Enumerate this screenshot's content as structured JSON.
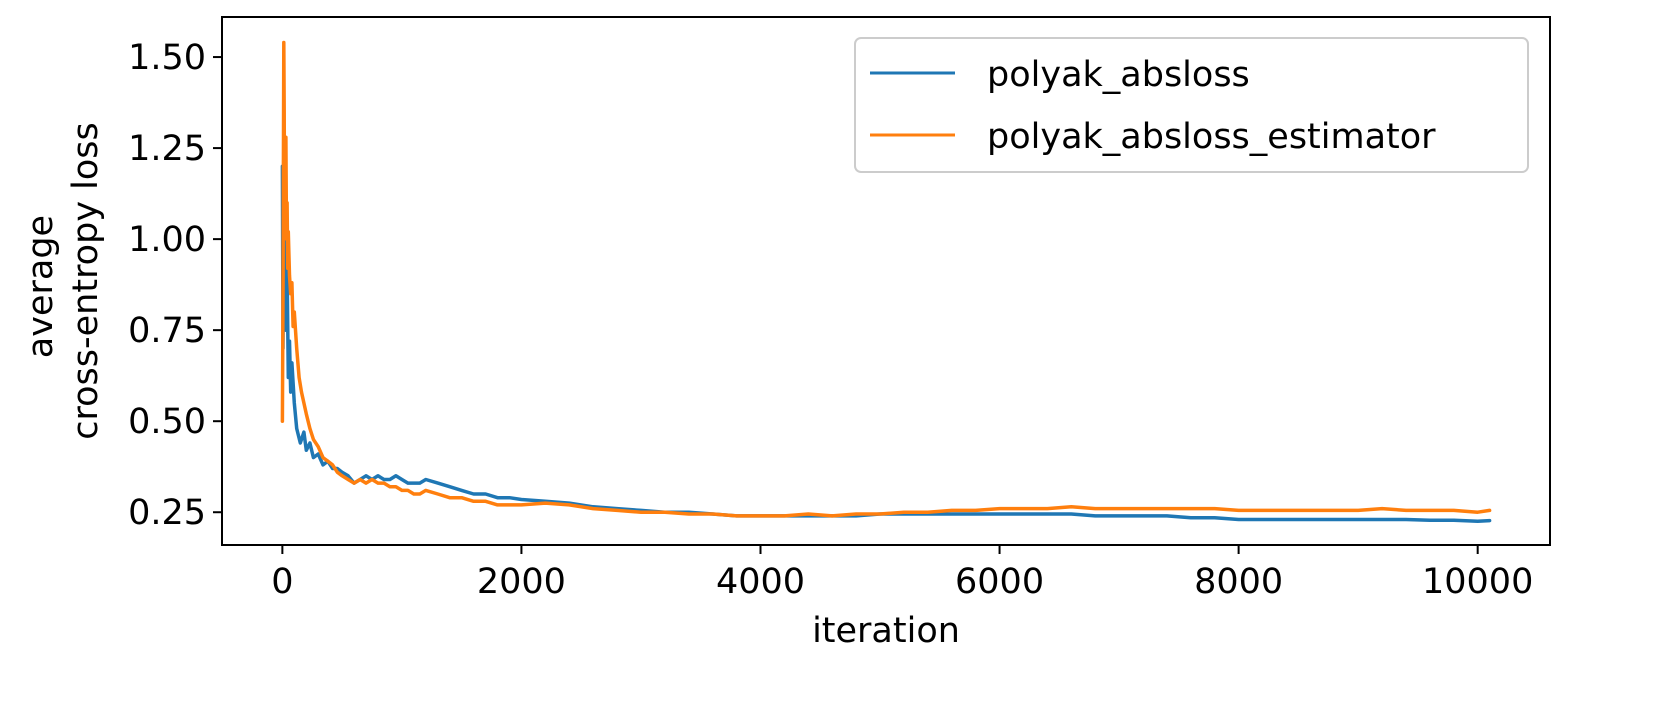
{
  "chart_data": {
    "type": "line",
    "title": "",
    "xlabel": "iteration",
    "ylabel_lines": [
      "average",
      "cross-entropy loss"
    ],
    "xlim": [
      -505,
      10605
    ],
    "ylim": [
      0.16,
      1.61
    ],
    "xticks": [
      0,
      2000,
      4000,
      6000,
      8000,
      10000
    ],
    "yticks": [
      0.25,
      0.5,
      0.75,
      1.0,
      1.25,
      1.5
    ],
    "xtick_labels": [
      "0",
      "2000",
      "4000",
      "6000",
      "8000",
      "10000"
    ],
    "ytick_labels": [
      "0.25",
      "0.50",
      "0.75",
      "1.00",
      "1.25",
      "1.50"
    ],
    "grid": false,
    "legend_position": "top-right",
    "series": [
      {
        "name": "polyak_absloss",
        "color": "#1f77b4",
        "x": [
          0,
          5,
          10,
          15,
          20,
          25,
          30,
          40,
          50,
          60,
          70,
          80,
          100,
          120,
          150,
          180,
          200,
          230,
          260,
          300,
          340,
          380,
          420,
          460,
          500,
          550,
          600,
          650,
          700,
          750,
          800,
          850,
          900,
          950,
          1000,
          1050,
          1100,
          1150,
          1200,
          1300,
          1400,
          1500,
          1600,
          1700,
          1800,
          1900,
          2000,
          2200,
          2400,
          2600,
          2800,
          3000,
          3200,
          3400,
          3600,
          3800,
          4000,
          4200,
          4400,
          4600,
          4800,
          5000,
          5200,
          5400,
          5600,
          5800,
          6000,
          6200,
          6400,
          6600,
          6800,
          7000,
          7200,
          7400,
          7600,
          7800,
          8000,
          8200,
          8400,
          8600,
          8800,
          9000,
          9200,
          9400,
          9600,
          9800,
          10000,
          10100
        ],
        "values": [
          1.2,
          0.7,
          1.05,
          1.3,
          0.85,
          1.0,
          0.75,
          0.92,
          0.62,
          0.72,
          0.58,
          0.66,
          0.55,
          0.48,
          0.44,
          0.47,
          0.42,
          0.44,
          0.4,
          0.41,
          0.38,
          0.39,
          0.37,
          0.37,
          0.36,
          0.35,
          0.33,
          0.34,
          0.35,
          0.34,
          0.35,
          0.34,
          0.34,
          0.35,
          0.34,
          0.33,
          0.33,
          0.33,
          0.34,
          0.33,
          0.32,
          0.31,
          0.3,
          0.3,
          0.29,
          0.29,
          0.285,
          0.28,
          0.275,
          0.265,
          0.26,
          0.255,
          0.25,
          0.25,
          0.245,
          0.24,
          0.24,
          0.24,
          0.24,
          0.24,
          0.24,
          0.245,
          0.245,
          0.245,
          0.245,
          0.245,
          0.245,
          0.245,
          0.245,
          0.245,
          0.24,
          0.24,
          0.24,
          0.24,
          0.235,
          0.235,
          0.23,
          0.23,
          0.23,
          0.23,
          0.23,
          0.23,
          0.23,
          0.23,
          0.228,
          0.228,
          0.225,
          0.227
        ]
      },
      {
        "name": "polyak_absloss_estimator",
        "color": "#ff7f0e",
        "x": [
          0,
          3,
          6,
          9,
          12,
          15,
          18,
          22,
          26,
          30,
          35,
          40,
          45,
          50,
          60,
          70,
          80,
          90,
          100,
          120,
          140,
          160,
          180,
          200,
          230,
          260,
          300,
          340,
          380,
          420,
          460,
          500,
          550,
          600,
          650,
          700,
          750,
          800,
          850,
          900,
          950,
          1000,
          1050,
          1100,
          1150,
          1200,
          1300,
          1400,
          1500,
          1600,
          1700,
          1800,
          1900,
          2000,
          2200,
          2400,
          2600,
          2800,
          3000,
          3200,
          3400,
          3600,
          3800,
          4000,
          4200,
          4400,
          4600,
          4800,
          5000,
          5200,
          5400,
          5600,
          5800,
          6000,
          6200,
          6400,
          6600,
          6800,
          7000,
          7200,
          7400,
          7600,
          7800,
          8000,
          8200,
          8400,
          8600,
          8800,
          9000,
          9200,
          9400,
          9600,
          9800,
          10000,
          10100
        ],
        "values": [
          0.5,
          0.68,
          0.9,
          1.2,
          1.54,
          1.35,
          1.1,
          1.2,
          1.05,
          1.28,
          1.0,
          1.1,
          0.92,
          1.02,
          0.9,
          0.85,
          0.88,
          0.76,
          0.8,
          0.7,
          0.62,
          0.58,
          0.55,
          0.52,
          0.48,
          0.45,
          0.43,
          0.4,
          0.39,
          0.38,
          0.36,
          0.35,
          0.34,
          0.33,
          0.34,
          0.33,
          0.34,
          0.33,
          0.33,
          0.32,
          0.32,
          0.31,
          0.31,
          0.3,
          0.3,
          0.31,
          0.3,
          0.29,
          0.29,
          0.28,
          0.28,
          0.27,
          0.27,
          0.27,
          0.275,
          0.27,
          0.26,
          0.255,
          0.25,
          0.25,
          0.245,
          0.245,
          0.24,
          0.24,
          0.24,
          0.245,
          0.24,
          0.245,
          0.245,
          0.25,
          0.25,
          0.255,
          0.255,
          0.26,
          0.26,
          0.26,
          0.265,
          0.26,
          0.26,
          0.26,
          0.26,
          0.26,
          0.26,
          0.255,
          0.255,
          0.255,
          0.255,
          0.255,
          0.255,
          0.26,
          0.255,
          0.255,
          0.255,
          0.25,
          0.255
        ]
      }
    ]
  }
}
